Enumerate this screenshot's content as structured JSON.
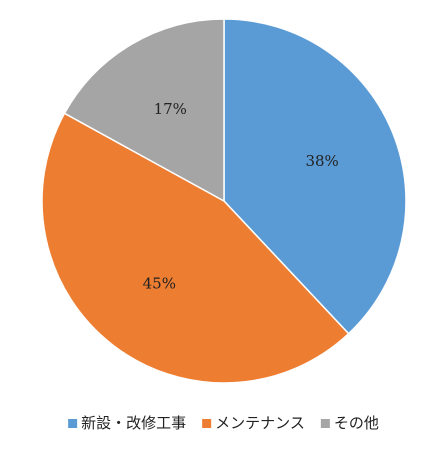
{
  "chart_data": {
    "type": "pie",
    "categories": [
      "新設・改修工事",
      "メンテナンス",
      "その他"
    ],
    "values": [
      38,
      45,
      17
    ],
    "value_labels": [
      "38%",
      "45%",
      "17%"
    ],
    "colors": [
      "#5b9bd5",
      "#ed7d31",
      "#a5a5a5"
    ],
    "legend": "bottom"
  }
}
